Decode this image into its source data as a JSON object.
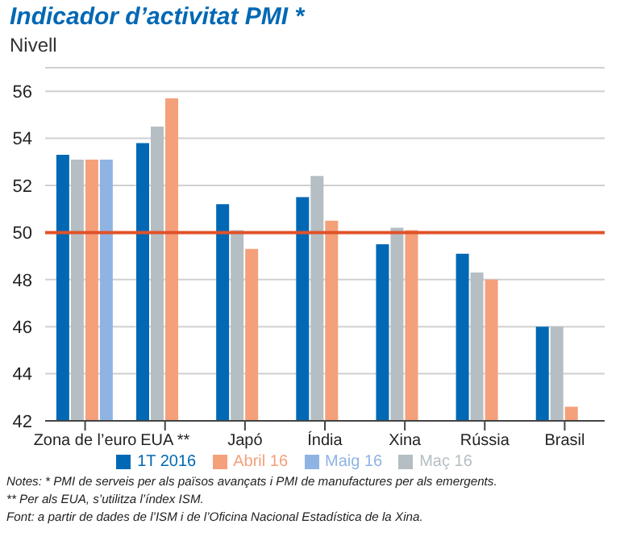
{
  "chart_data": {
    "type": "bar",
    "title": "Indicador d’activitat PMI *",
    "ylabel": "Nivell",
    "categories": [
      "Zona de l’euro",
      "EUA **",
      "Japó",
      "Índia",
      "Xina",
      "Rússia",
      "Brasil"
    ],
    "series": [
      {
        "name": "1T 2016",
        "color": "#0068b4",
        "values": [
          53.3,
          53.8,
          51.2,
          51.5,
          49.5,
          49.1,
          46.0
        ]
      },
      {
        "name": "Maç 16",
        "color": "#b4bec3",
        "values": [
          53.1,
          54.5,
          50.1,
          52.4,
          50.2,
          48.3,
          46.0
        ]
      },
      {
        "name": "Abril 16",
        "color": "#f4a07a",
        "values": [
          53.1,
          55.7,
          49.3,
          50.5,
          50.1,
          48.0,
          42.6
        ]
      },
      {
        "name": "Maig 16",
        "color": "#8fb4e3",
        "values": [
          53.1,
          null,
          null,
          null,
          null,
          null,
          null
        ]
      }
    ],
    "ylim": [
      42,
      57
    ],
    "yticks": [
      42,
      44,
      46,
      48,
      50,
      52,
      54,
      56
    ],
    "grid": "y",
    "legend": "bottom",
    "ref_lines": [
      {
        "axis": "y",
        "value": 50,
        "color": "#e0522a"
      }
    ],
    "annotations": [
      "Notes: * PMI de serveis per als països avançats i PMI de manufactures per als emergents.",
      "** Per als EUA, s’utilitza l’índex ISM.",
      "Font: a partir de dades de l’ISM i de l’Oficina Nacional Estadística de la Xina."
    ]
  }
}
